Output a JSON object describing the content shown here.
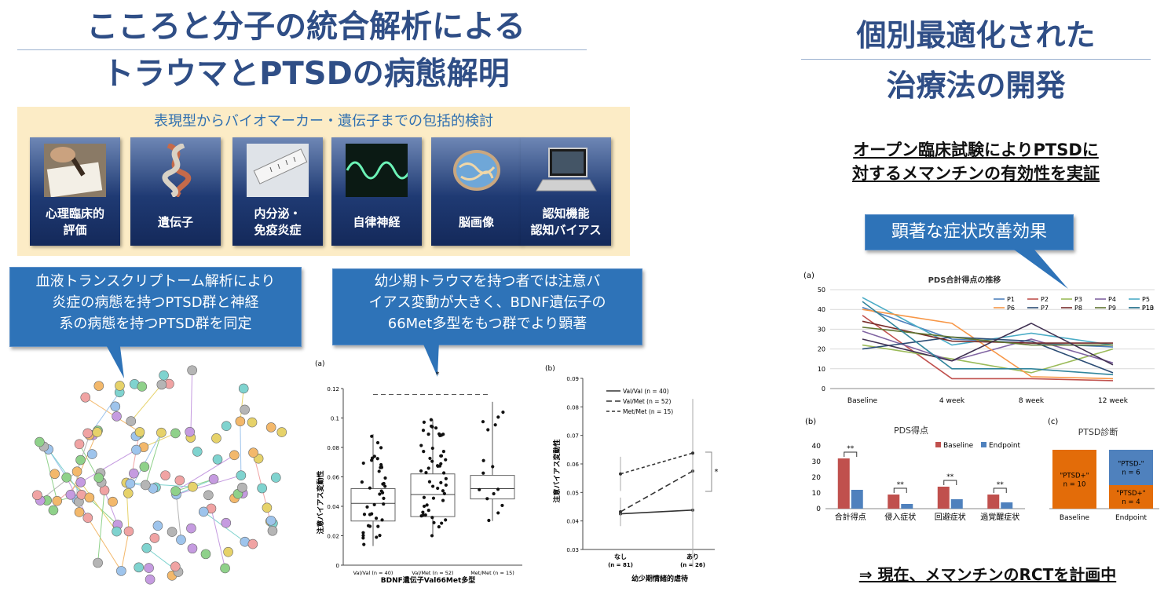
{
  "left_title": {
    "line1": "こころと分子の統合解析による",
    "line2": "トラウマとPTSDの病態解明"
  },
  "right_title": {
    "line1": "個別最適化された",
    "line2": "治療法の開発"
  },
  "band_caption": "表現型からバイオマーカー・遺伝子までの包括的検討",
  "tiles": [
    {
      "label": "心理臨床的\n評価",
      "icon": "handwriting-icon"
    },
    {
      "label": "遺伝子",
      "icon": "dna-icon"
    },
    {
      "label": "内分泌・\n免疫炎症",
      "icon": "test-tube-icon"
    },
    {
      "label": "自律神経",
      "icon": "waveform-icon"
    },
    {
      "label": "脳画像",
      "icon": "brain-icon"
    },
    {
      "label": "認知機能\n認知バイアス",
      "icon": "laptop-icon"
    }
  ],
  "callout_left": "血液トランスクリプトーム解析により\n炎症の病態を持つPTSD群と神経\n系の病態を持つPTSD群を同定",
  "callout_middle": "幼少期トラウマを持つ者では注意バ\nイアス変動が大きく、BDNF遺伝子の\n66Met多型をもつ群でより顕著",
  "open_trial": {
    "line1": "オープン臨床試験によりPTSDに",
    "line2": "対するメマンチンの有効性を実証"
  },
  "callout_right": "顕著な症状改善効果",
  "conclusion": "⇒ 現在、メマンチンのRCTを計画中",
  "colors": {
    "title": "#2f4e86",
    "callout": "#2e73b8",
    "band": "#fcecc6",
    "baseline": "#c0504d",
    "endpoint": "#4f81bd",
    "ptsd_pos": "#e36c09",
    "ptsd_neg": "#4f81bd"
  },
  "chart_data": [
    {
      "type": "box",
      "panel_label": "(a)",
      "ylabel": "注意バイアス変動性",
      "xlabel": "BDNF遺伝子Val66Met多型",
      "ylim": [
        0,
        0.12
      ],
      "yticks": [
        "0",
        "0.02",
        "0.04",
        "0.06",
        "0.08",
        "0.1",
        "0.12"
      ],
      "significance": "*",
      "categories": [
        "Val/Val (n = 40)",
        "Val/Met (n = 52)",
        "Met/Met (n = 15)"
      ],
      "boxes": [
        {
          "min": 0.013,
          "q1": 0.03,
          "median": 0.042,
          "q3": 0.052,
          "max": 0.089
        },
        {
          "min": 0.02,
          "q1": 0.033,
          "median": 0.048,
          "q3": 0.062,
          "max": 0.099
        },
        {
          "min": 0.03,
          "q1": 0.045,
          "median": 0.052,
          "q3": 0.061,
          "max": 0.111
        }
      ]
    },
    {
      "type": "line",
      "panel_label": "(b)",
      "ylabel": "注意バイアス変動性",
      "xlabel": "幼少期情緒的虐待",
      "ylim": [
        0.03,
        0.09
      ],
      "yticks": [
        "0.03",
        "0.04",
        "0.05",
        "0.06",
        "0.07",
        "0.08",
        "0.09"
      ],
      "categories": [
        "なし",
        "あり"
      ],
      "category_n": [
        "(n = 81)",
        "(n = 26)"
      ],
      "significance": "*",
      "series": [
        {
          "name": "Val/Val (n = 40)",
          "values": [
            0.0425,
            0.0438
          ]
        },
        {
          "name": "Val/Met (n = 52)",
          "values": [
            0.0432,
            0.0575
          ]
        },
        {
          "name": "Met/Met (n = 15)",
          "values": [
            0.0565,
            0.0638
          ]
        }
      ]
    },
    {
      "type": "line",
      "panel_label": "(a)",
      "title": "PDS合計得点の推移",
      "categories": [
        "Baseline",
        "4 week",
        "8 week",
        "12 week"
      ],
      "ylim": [
        0,
        50
      ],
      "yticks": [
        "0",
        "10",
        "20",
        "30",
        "40",
        "50"
      ],
      "series": [
        {
          "name": "P1",
          "color": "#4f81bd",
          "values": [
            41,
            25,
            23,
            21
          ]
        },
        {
          "name": "P2",
          "color": "#c0504d",
          "values": [
            37,
            5,
            5,
            4
          ]
        },
        {
          "name": "P3",
          "color": "#9bbb59",
          "values": [
            22,
            15,
            8,
            20
          ]
        },
        {
          "name": "P4",
          "color": "#8064a2",
          "values": [
            29,
            14,
            25,
            13
          ]
        },
        {
          "name": "P5",
          "color": "#4bacc6",
          "values": [
            46,
            22,
            28,
            22
          ]
        },
        {
          "name": "P6",
          "color": "#f79646",
          "values": [
            40,
            33,
            6,
            5
          ]
        },
        {
          "name": "P7",
          "color": "#2c4d75",
          "values": [
            20,
            26,
            24,
            8
          ]
        },
        {
          "name": "P8",
          "color": "#772c2a",
          "values": [
            34,
            24,
            23,
            23
          ]
        },
        {
          "name": "P9",
          "color": "#5f7530",
          "values": [
            31,
            26,
            22,
            22
          ]
        },
        {
          "name": "P10",
          "color": "#403152",
          "values": [
            25,
            14,
            33,
            12
          ]
        },
        {
          "name": "P13",
          "color": "#31859c",
          "values": [
            44,
            10,
            10,
            7
          ]
        }
      ]
    },
    {
      "type": "bar",
      "panel_label": "(b)",
      "title": "PDS得点",
      "categories": [
        "合計得点",
        "侵入症状",
        "回避症状",
        "過覚醒症状"
      ],
      "ylim": [
        0,
        40
      ],
      "yticks": [
        "0",
        "10",
        "20",
        "30",
        "40"
      ],
      "significance": [
        "**",
        "**",
        "**",
        "**"
      ],
      "series": [
        {
          "name": "Baseline",
          "color": "#c0504d",
          "values": [
            32,
            9,
            14,
            9
          ]
        },
        {
          "name": "Endpoint",
          "color": "#4f81bd",
          "values": [
            12,
            3,
            6,
            4
          ]
        }
      ]
    },
    {
      "type": "bar",
      "panel_label": "(c)",
      "title": "PTSD診断",
      "categories": [
        "Baseline",
        "Endpoint"
      ],
      "stacks": [
        {
          "category": "Baseline",
          "segments": [
            {
              "label": "\"PTSD+\"",
              "n": "n = 10",
              "count": 10,
              "color": "#e36c09"
            }
          ]
        },
        {
          "category": "Endpoint",
          "segments": [
            {
              "label": "\"PTSD+\"",
              "n": "n = 4",
              "count": 4,
              "color": "#e36c09"
            },
            {
              "label": "\"PTSD-\"",
              "n": "n = 6",
              "count": 6,
              "color": "#4f81bd"
            }
          ]
        }
      ]
    }
  ]
}
